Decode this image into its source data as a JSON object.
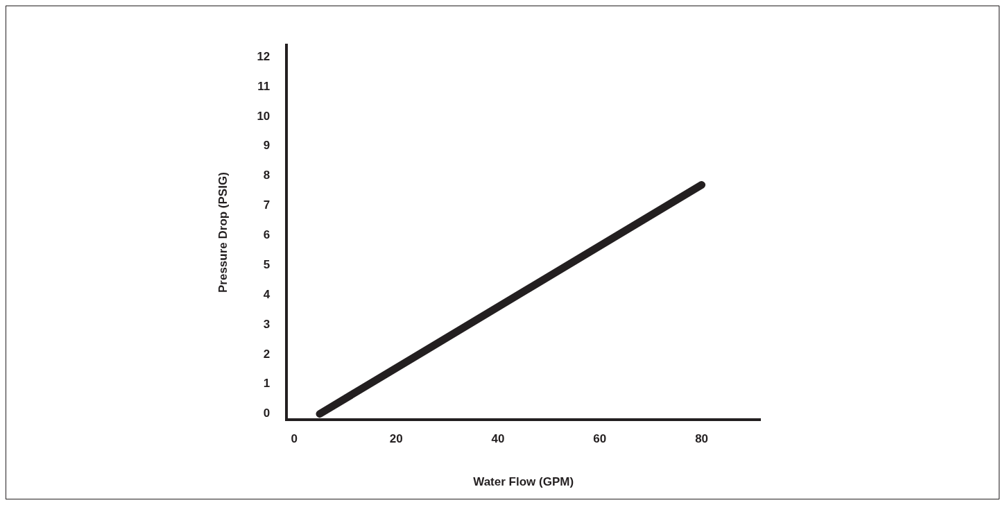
{
  "chart_data": {
    "type": "line",
    "xlabel": "Water Flow (GPM)",
    "ylabel": "Pressure Drop (PSIG)",
    "series": [
      {
        "color": "#231f20",
        "x": [
          5,
          80
        ],
        "values": [
          0,
          7.7
        ]
      }
    ],
    "xlim": [
      -1.5,
      91.5
    ],
    "ylim": [
      -0.2,
      12.4
    ],
    "xticks": [
      0,
      20,
      40,
      60,
      80
    ],
    "yticks": [
      0,
      1,
      2,
      3,
      4,
      5,
      6,
      7,
      8,
      9,
      10,
      11,
      12
    ],
    "grid": false,
    "legend": false,
    "marker": "none",
    "line_style": "solid"
  }
}
